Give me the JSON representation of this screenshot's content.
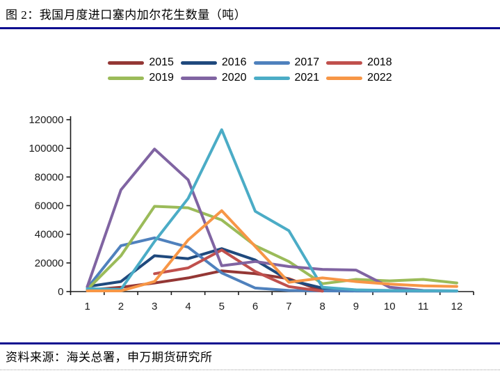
{
  "header": {
    "title": "图 2：我国月度进口塞内加尔花生数量（吨）"
  },
  "footer": {
    "source": "资料来源：海关总署，申万期货研究所"
  },
  "colors": {
    "rule": "#0b0b8f",
    "axis": "#1a1a1a",
    "tick_label": "#1a1a1a"
  },
  "chart_data": {
    "type": "line",
    "title": "我国月度进口塞内加尔花生数量（吨）",
    "xlabel": "",
    "ylabel": "",
    "x": [
      1,
      2,
      3,
      4,
      5,
      6,
      7,
      8,
      9,
      10,
      11,
      12
    ],
    "ylim": [
      0,
      120000
    ],
    "yticks": [
      0,
      20000,
      40000,
      60000,
      80000,
      100000,
      120000
    ],
    "grid": false,
    "legend_position": "top-center-two-rows",
    "series": [
      {
        "name": "2015",
        "color": "#943735",
        "values": [
          1000,
          3000,
          6000,
          9500,
          14500,
          12500,
          9000,
          500,
          null,
          null,
          null,
          null
        ]
      },
      {
        "name": "2016",
        "color": "#1F497D",
        "values": [
          3500,
          7000,
          25000,
          23000,
          30000,
          22000,
          8000,
          2500,
          1000,
          null,
          null,
          null
        ]
      },
      {
        "name": "2017",
        "color": "#4F81BD",
        "values": [
          2500,
          32000,
          37500,
          31000,
          13000,
          2500,
          800,
          500,
          400,
          400,
          300,
          300
        ]
      },
      {
        "name": "2018",
        "color": "#C0504D",
        "values": [
          null,
          null,
          12500,
          16500,
          29000,
          14000,
          3500,
          300,
          null,
          null,
          null,
          null
        ]
      },
      {
        "name": "2019",
        "color": "#9BBB59",
        "values": [
          1500,
          25000,
          59500,
          58500,
          50000,
          32000,
          21000,
          5500,
          8500,
          7500,
          8500,
          6000
        ]
      },
      {
        "name": "2020",
        "color": "#8064A2",
        "values": [
          3500,
          71000,
          99500,
          78000,
          18000,
          21000,
          17500,
          15500,
          15000,
          3000,
          800,
          500
        ]
      },
      {
        "name": "2021",
        "color": "#4BACC6",
        "values": [
          2000,
          1500,
          35000,
          65000,
          113000,
          56000,
          42500,
          3000,
          1200,
          800,
          600,
          500
        ]
      },
      {
        "name": "2022",
        "color": "#F79646",
        "values": [
          500,
          500,
          7000,
          36000,
          56500,
          31500,
          6500,
          9500,
          7000,
          5200,
          4000,
          3600
        ]
      }
    ]
  }
}
